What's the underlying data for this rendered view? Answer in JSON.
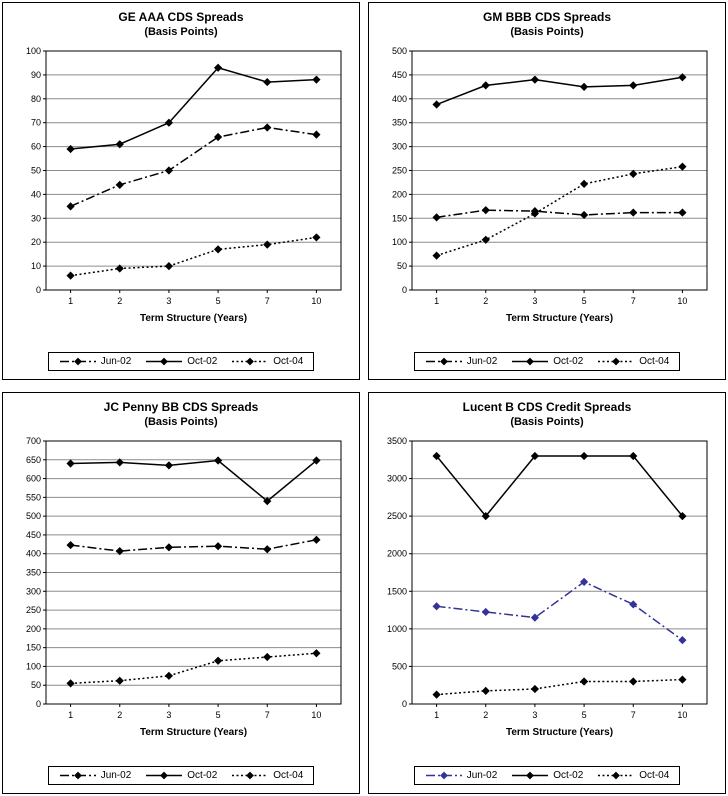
{
  "chart_data": [
    {
      "type": "line",
      "title": "GE AAA CDS Spreads",
      "subtitle": "(Basis Points)",
      "xlabel": "Term Structure (Years)",
      "ylabel": "",
      "categories": [
        "1",
        "2",
        "3",
        "5",
        "7",
        "10"
      ],
      "ymin": 0,
      "ymax": 100,
      "ystep": 10,
      "grid": true,
      "legend_position": "bottom",
      "series": [
        {
          "name": "Jun-02",
          "style": "dashdot",
          "color": "#000000",
          "values": [
            35,
            44,
            50,
            64,
            68,
            65
          ]
        },
        {
          "name": "Oct-02",
          "style": "solid",
          "color": "#000000",
          "values": [
            59,
            61,
            70,
            93,
            87,
            88
          ]
        },
        {
          "name": "Oct-04",
          "style": "dotted",
          "color": "#000000",
          "values": [
            6,
            9,
            10,
            17,
            19,
            22
          ]
        }
      ]
    },
    {
      "type": "line",
      "title": "GM BBB CDS Spreads",
      "subtitle": "(Basis Points)",
      "xlabel": "Term Structure (Years)",
      "ylabel": "",
      "categories": [
        "1",
        "2",
        "3",
        "5",
        "7",
        "10"
      ],
      "ymin": 0,
      "ymax": 500,
      "ystep": 50,
      "grid": true,
      "legend_position": "bottom",
      "series": [
        {
          "name": "Jun-02",
          "style": "dashdot",
          "color": "#000000",
          "values": [
            152,
            167,
            165,
            157,
            162,
            162
          ]
        },
        {
          "name": "Oct-02",
          "style": "solid",
          "color": "#000000",
          "values": [
            388,
            428,
            440,
            425,
            428,
            445
          ]
        },
        {
          "name": "Oct-04",
          "style": "dotted",
          "color": "#000000",
          "values": [
            72,
            105,
            160,
            222,
            243,
            258
          ]
        }
      ]
    },
    {
      "type": "line",
      "title": "JC Penny BB CDS Spreads",
      "subtitle": "(Basis Points)",
      "xlabel": "Term Structure (Years)",
      "ylabel": "",
      "categories": [
        "1",
        "2",
        "3",
        "5",
        "7",
        "10"
      ],
      "ymin": 0,
      "ymax": 700,
      "ystep": 50,
      "grid": true,
      "legend_position": "bottom",
      "series": [
        {
          "name": "Jun-02",
          "style": "dashdot",
          "color": "#000000",
          "values": [
            423,
            407,
            417,
            420,
            412,
            437
          ]
        },
        {
          "name": "Oct-02",
          "style": "solid",
          "color": "#000000",
          "values": [
            640,
            643,
            635,
            648,
            540,
            648
          ]
        },
        {
          "name": "Oct-04",
          "style": "dotted",
          "color": "#000000",
          "values": [
            55,
            62,
            75,
            115,
            125,
            135
          ]
        }
      ]
    },
    {
      "type": "line",
      "title": "Lucent B CDS Credit Spreads",
      "subtitle": "(Basis Points)",
      "xlabel": "Term Structure (Years)",
      "ylabel": "",
      "categories": [
        "1",
        "2",
        "3",
        "5",
        "7",
        "10"
      ],
      "ymin": 0,
      "ymax": 3500,
      "ystep": 500,
      "grid": true,
      "legend_position": "bottom",
      "series": [
        {
          "name": "Jun-02",
          "style": "dashdot",
          "color": "#333399",
          "values": [
            1300,
            1225,
            1150,
            1625,
            1325,
            850
          ]
        },
        {
          "name": "Oct-02",
          "style": "solid",
          "color": "#000000",
          "values": [
            3300,
            2500,
            3300,
            3300,
            3300,
            2500
          ]
        },
        {
          "name": "Oct-04",
          "style": "dotted",
          "color": "#000000",
          "values": [
            125,
            175,
            200,
            300,
            300,
            325
          ]
        }
      ]
    }
  ]
}
